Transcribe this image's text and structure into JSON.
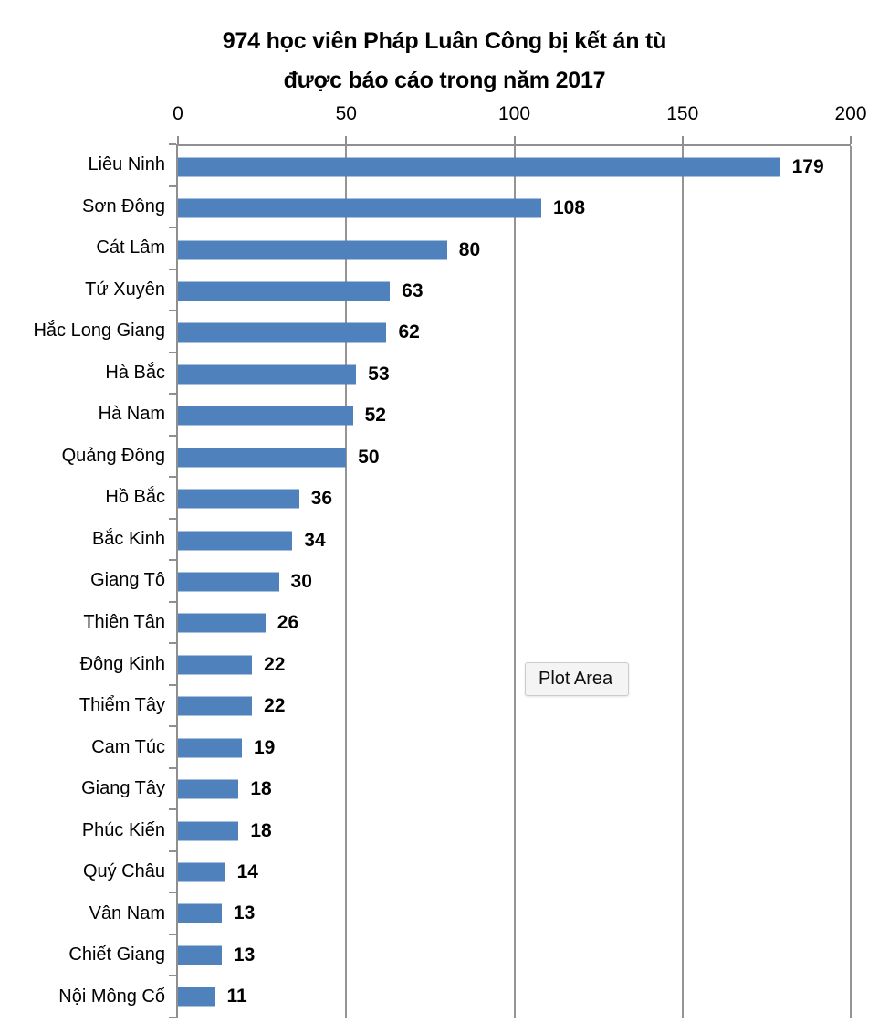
{
  "title": {
    "line1": "974 học viên Pháp Luân Công bị kết án tù",
    "line2": "được báo cáo trong năm 2017"
  },
  "tooltip": {
    "label": "Plot Area"
  },
  "chart_data": {
    "type": "bar",
    "orientation": "horizontal",
    "title": "974 học viên Pháp Luân Công bị kết án tù được báo cáo trong năm 2017",
    "categories": [
      "Liêu Ninh",
      "Sơn Đông",
      "Cát Lâm",
      "Tứ Xuyên",
      "Hắc Long Giang",
      "Hà Bắc",
      "Hà Nam",
      "Quảng Đông",
      "Hồ Bắc",
      "Bắc Kinh",
      "Giang Tô",
      "Thiên Tân",
      "Đông Kinh",
      "Thiểm Tây",
      "Cam Túc",
      "Giang Tây",
      "Phúc Kiến",
      "Quý Châu",
      "Vân Nam",
      "Chiết Giang",
      "Nội Mông Cổ"
    ],
    "values": [
      179,
      108,
      80,
      63,
      62,
      53,
      52,
      50,
      36,
      34,
      30,
      26,
      22,
      22,
      19,
      18,
      18,
      14,
      13,
      13,
      11
    ],
    "value_labels_shown": true,
    "axis": {
      "position": "top",
      "min": 0,
      "max": 200,
      "tick_interval": 50,
      "tick_labels": [
        "0",
        "50",
        "100",
        "150",
        "200"
      ]
    },
    "legend": "none",
    "grid": "vertical",
    "colors": {
      "bar": "#4F81BD",
      "axis_line": "#8f8f8f",
      "gridline": "#949494",
      "text": "#000000",
      "background": "#ffffff"
    }
  }
}
